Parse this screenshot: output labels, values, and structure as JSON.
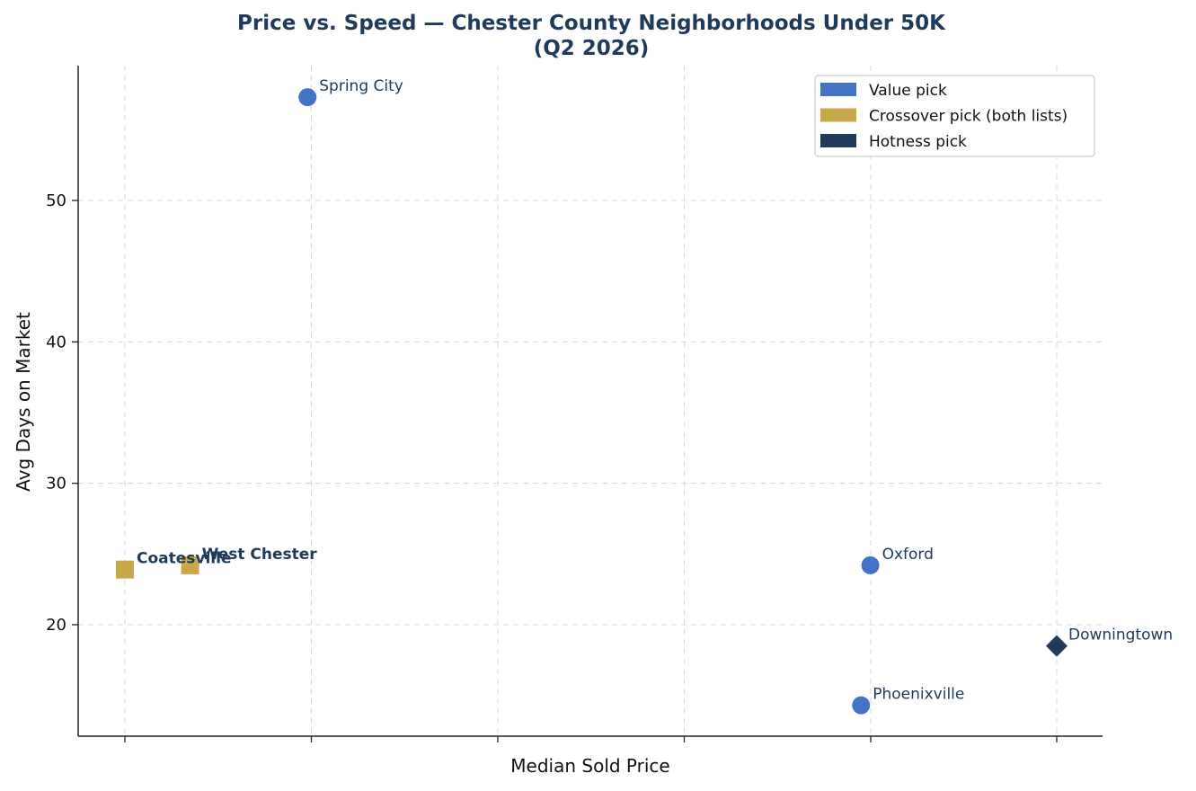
{
  "chart_data": {
    "type": "scatter",
    "title_line1": "Price vs. Speed — Chester County Neighborhoods Under 50K",
    "title_line2": "(Q2 2026)",
    "xlabel": "Median Sold Price",
    "ylabel": "Avg Days on Market",
    "y_ticks": [
      20,
      30,
      40,
      50
    ],
    "ylim": [
      12.2,
      59.5
    ],
    "x_ticks_labeled": false,
    "grid": true,
    "legend_position": "top-right",
    "categories": [
      {
        "name": "Value pick",
        "color": "#4472c4",
        "marker": "circle"
      },
      {
        "name": "Crossover pick (both lists)",
        "color": "#c9a84c",
        "marker": "square"
      },
      {
        "name": "Hotness pick",
        "color": "#1f3a5a",
        "marker": "diamond"
      }
    ],
    "points": [
      {
        "label": "Spring City",
        "category": 0,
        "x": 0.98,
        "y": 57.3,
        "bold": false
      },
      {
        "label": "Coatesville",
        "category": 1,
        "x": 0.0,
        "y": 23.9,
        "bold": true
      },
      {
        "label": "West Chester",
        "category": 1,
        "x": 0.35,
        "y": 24.2,
        "bold": true
      },
      {
        "label": "Oxford",
        "category": 0,
        "x": 4.0,
        "y": 24.2,
        "bold": false
      },
      {
        "label": "Phoenixville",
        "category": 0,
        "x": 3.95,
        "y": 14.3,
        "bold": false
      },
      {
        "label": "Downingtown",
        "category": 2,
        "x": 5.0,
        "y": 18.5,
        "bold": false
      }
    ]
  }
}
